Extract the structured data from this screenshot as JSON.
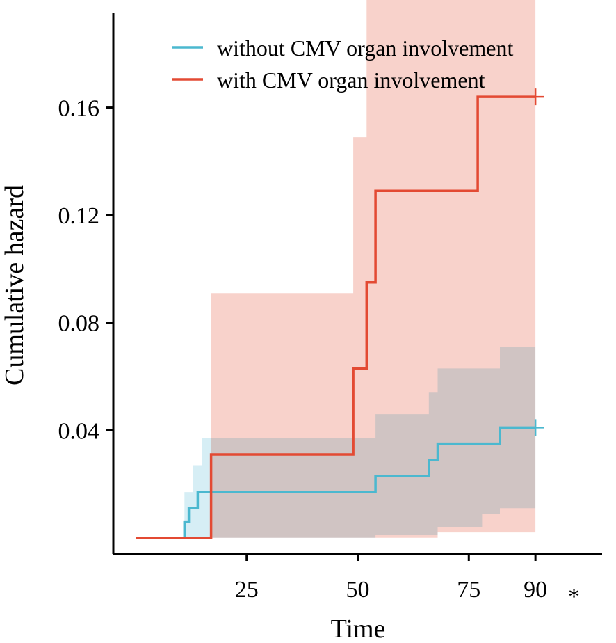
{
  "chart_data": {
    "type": "line",
    "style": "step",
    "title": "",
    "xlabel": "Time",
    "ylabel": "Cumulative hazard",
    "xlim": [
      -5,
      105
    ],
    "ylim": [
      -0.006,
      0.2
    ],
    "x_ticks": [
      {
        "value": 25,
        "label": "25"
      },
      {
        "value": 50,
        "label": "50"
      },
      {
        "value": 75,
        "label": "75"
      },
      {
        "value": 90,
        "label": "90"
      }
    ],
    "y_ticks": [
      {
        "value": 0.04,
        "label": "0.04"
      },
      {
        "value": 0.08,
        "label": "0.08"
      },
      {
        "value": 0.12,
        "label": "0.12"
      },
      {
        "value": 0.16,
        "label": "0.16"
      }
    ],
    "annotation": "*",
    "legend_position": "top-right",
    "series": [
      {
        "name": "without CMV organ involvement",
        "color": "#4bb8cf",
        "band_color": "#c8e8f1",
        "steps": [
          [
            0,
            0
          ],
          [
            11,
            0.006
          ],
          [
            12,
            0.011
          ],
          [
            14,
            0.017
          ],
          [
            54,
            0.023
          ],
          [
            66,
            0.029
          ],
          [
            68,
            0.035
          ],
          [
            82,
            0.041
          ],
          [
            90,
            0.041
          ]
        ],
        "ci_lower": [
          [
            11,
            0
          ],
          [
            54,
            0.001
          ],
          [
            68,
            0.004
          ],
          [
            78,
            0.009
          ],
          [
            82,
            0.011
          ],
          [
            90,
            0.011
          ]
        ],
        "ci_upper": [
          [
            11,
            0.017
          ],
          [
            13,
            0.027
          ],
          [
            15,
            0.037
          ],
          [
            54,
            0.046
          ],
          [
            66,
            0.054
          ],
          [
            68,
            0.063
          ],
          [
            82,
            0.071
          ],
          [
            90,
            0.071
          ]
        ]
      },
      {
        "name": "with CMV organ involvement",
        "color": "#e34a33",
        "band_color": "#f8d2cb",
        "steps": [
          [
            0,
            0
          ],
          [
            17,
            0.031
          ],
          [
            49,
            0.063
          ],
          [
            52,
            0.095
          ],
          [
            54,
            0.129
          ],
          [
            77,
            0.164
          ],
          [
            90,
            0.164
          ]
        ],
        "ci_lower": [
          [
            17,
            0
          ],
          [
            54,
            0
          ],
          [
            68,
            0.002
          ],
          [
            77,
            0.002
          ],
          [
            90,
            0.002
          ]
        ],
        "ci_upper": [
          [
            17,
            0.091
          ],
          [
            49,
            0.149
          ],
          [
            52,
            0.2
          ],
          [
            90,
            0.2
          ]
        ]
      }
    ],
    "censor_marks": [
      {
        "series": 0,
        "x": 90,
        "y": 0.041
      },
      {
        "series": 1,
        "x": 90,
        "y": 0.164
      }
    ]
  }
}
